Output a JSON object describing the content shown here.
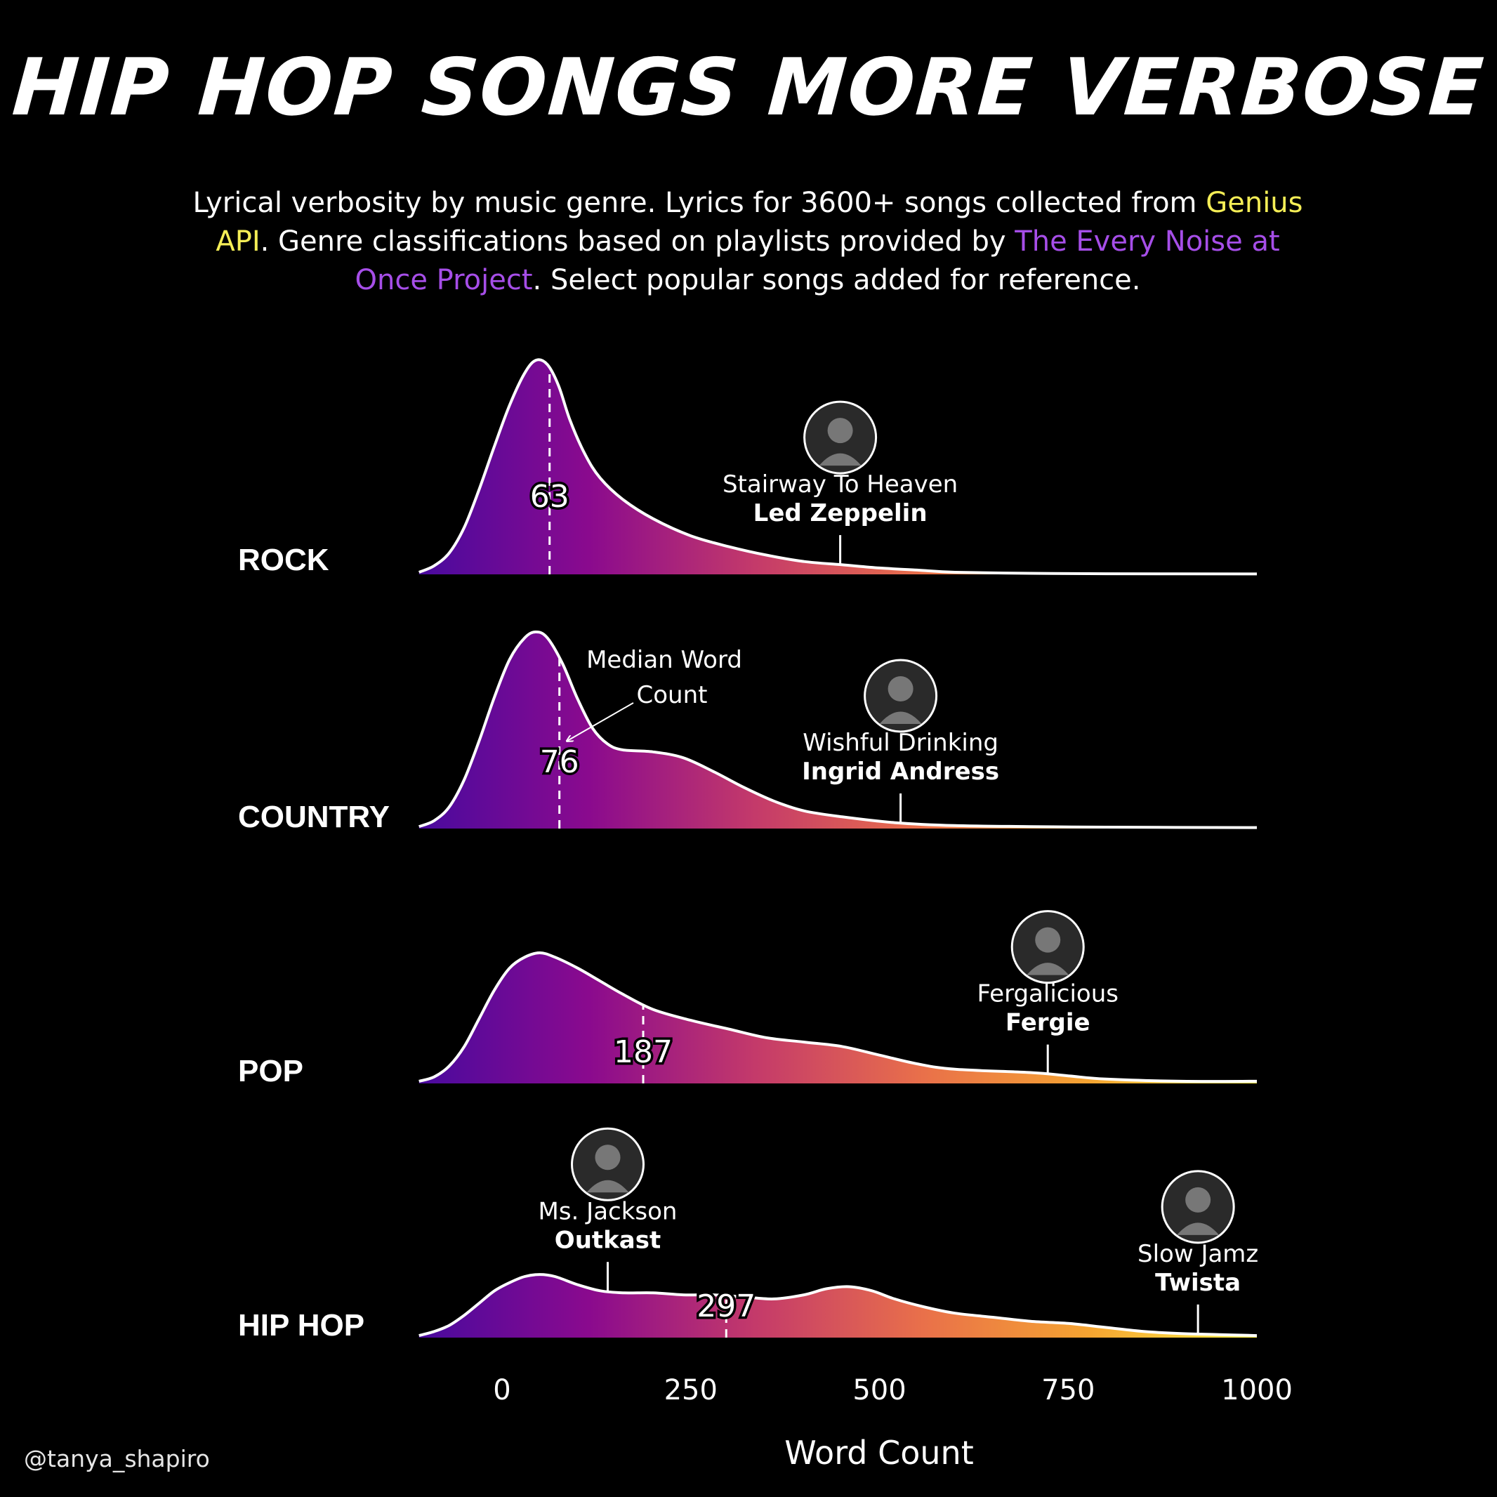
{
  "title": "HIP HOP SONGS MORE VERBOSE",
  "subtitle": {
    "part1": "Lyrical verbosity by music genre. Lyrics for 3600+ songs collected from ",
    "link1": "Genius API",
    "part2": ". Genre classifications based on playlists provided by ",
    "link2": "The Every Noise at Once Project",
    "part3": ". Select popular songs added for reference."
  },
  "credit": "@tanya_shapiro",
  "colors": {
    "background": "#000000",
    "gradient": [
      "#4a0a9e",
      "#8a0a8e",
      "#c43a6a",
      "#e9704a",
      "#f5a431",
      "#fff24a"
    ],
    "genius_link": "#f5ee56",
    "everynoise_link": "#a64ee8"
  },
  "annotation": {
    "median_note": "Median Word Count",
    "median_note_line1": "Median Word",
    "median_note_line2": "Count"
  },
  "chart_data": {
    "type": "area",
    "subtype": "ridgeline-density",
    "xlabel": "Word Count",
    "xlim": [
      -110,
      1000
    ],
    "x_ticks": [
      0,
      250,
      500,
      750,
      1000
    ],
    "x_tick_labels": [
      "0",
      "250",
      "500",
      "750",
      "1000"
    ],
    "series": [
      {
        "name": "ROCK",
        "median": 63,
        "density": [
          [
            -110,
            0.01
          ],
          [
            -90,
            0.04
          ],
          [
            -70,
            0.1
          ],
          [
            -50,
            0.22
          ],
          [
            -30,
            0.4
          ],
          [
            -10,
            0.6
          ],
          [
            10,
            0.79
          ],
          [
            30,
            0.94
          ],
          [
            45,
            1.0
          ],
          [
            60,
            0.98
          ],
          [
            75,
            0.88
          ],
          [
            90,
            0.72
          ],
          [
            110,
            0.56
          ],
          [
            130,
            0.45
          ],
          [
            160,
            0.35
          ],
          [
            200,
            0.26
          ],
          [
            250,
            0.18
          ],
          [
            300,
            0.13
          ],
          [
            350,
            0.09
          ],
          [
            400,
            0.06
          ],
          [
            450,
            0.045
          ],
          [
            500,
            0.03
          ],
          [
            550,
            0.02
          ],
          [
            600,
            0.01
          ],
          [
            700,
            0.005
          ],
          [
            800,
            0.003
          ],
          [
            1000,
            0.002
          ]
        ],
        "highlight": {
          "song": "Stairway To Heaven",
          "artist": "Led Zeppelin",
          "x": 448
        }
      },
      {
        "name": "COUNTRY",
        "median": 76,
        "density": [
          [
            -110,
            0.01
          ],
          [
            -90,
            0.04
          ],
          [
            -70,
            0.11
          ],
          [
            -50,
            0.25
          ],
          [
            -30,
            0.45
          ],
          [
            -10,
            0.67
          ],
          [
            10,
            0.86
          ],
          [
            30,
            0.97
          ],
          [
            45,
            1.0
          ],
          [
            60,
            0.97
          ],
          [
            80,
            0.84
          ],
          [
            100,
            0.66
          ],
          [
            120,
            0.51
          ],
          [
            140,
            0.43
          ],
          [
            160,
            0.4
          ],
          [
            200,
            0.39
          ],
          [
            240,
            0.36
          ],
          [
            280,
            0.29
          ],
          [
            320,
            0.21
          ],
          [
            360,
            0.14
          ],
          [
            400,
            0.09
          ],
          [
            450,
            0.06
          ],
          [
            520,
            0.03
          ],
          [
            600,
            0.015
          ],
          [
            700,
            0.01
          ],
          [
            800,
            0.007
          ],
          [
            1000,
            0.005
          ]
        ],
        "highlight": {
          "song": "Wishful Drinking",
          "artist": "Ingrid Andress",
          "x": 528
        }
      },
      {
        "name": "POP",
        "median": 187,
        "density": [
          [
            -110,
            0.01
          ],
          [
            -90,
            0.03
          ],
          [
            -70,
            0.08
          ],
          [
            -50,
            0.17
          ],
          [
            -30,
            0.3
          ],
          [
            -10,
            0.43
          ],
          [
            10,
            0.53
          ],
          [
            30,
            0.58
          ],
          [
            50,
            0.6
          ],
          [
            70,
            0.58
          ],
          [
            100,
            0.53
          ],
          [
            130,
            0.47
          ],
          [
            160,
            0.41
          ],
          [
            200,
            0.34
          ],
          [
            250,
            0.29
          ],
          [
            300,
            0.25
          ],
          [
            350,
            0.21
          ],
          [
            400,
            0.19
          ],
          [
            450,
            0.17
          ],
          [
            500,
            0.13
          ],
          [
            550,
            0.09
          ],
          [
            600,
            0.065
          ],
          [
            700,
            0.05
          ],
          [
            750,
            0.035
          ],
          [
            800,
            0.02
          ],
          [
            900,
            0.01
          ],
          [
            1000,
            0.01
          ]
        ],
        "highlight": {
          "song": "Fergalicious",
          "artist": "Fergie",
          "x": 723
        }
      },
      {
        "name": "HIP HOP",
        "median": 297,
        "density": [
          [
            -110,
            0.01
          ],
          [
            -90,
            0.03
          ],
          [
            -70,
            0.06
          ],
          [
            -50,
            0.11
          ],
          [
            -30,
            0.17
          ],
          [
            -10,
            0.23
          ],
          [
            10,
            0.27
          ],
          [
            30,
            0.3
          ],
          [
            50,
            0.31
          ],
          [
            70,
            0.3
          ],
          [
            100,
            0.26
          ],
          [
            130,
            0.23
          ],
          [
            160,
            0.22
          ],
          [
            200,
            0.22
          ],
          [
            240,
            0.21
          ],
          [
            280,
            0.21
          ],
          [
            320,
            0.2
          ],
          [
            360,
            0.19
          ],
          [
            400,
            0.21
          ],
          [
            430,
            0.24
          ],
          [
            460,
            0.25
          ],
          [
            490,
            0.23
          ],
          [
            520,
            0.19
          ],
          [
            560,
            0.15
          ],
          [
            600,
            0.12
          ],
          [
            650,
            0.1
          ],
          [
            700,
            0.08
          ],
          [
            750,
            0.07
          ],
          [
            800,
            0.05
          ],
          [
            850,
            0.03
          ],
          [
            900,
            0.02
          ],
          [
            950,
            0.015
          ],
          [
            1000,
            0.01
          ]
        ],
        "highlights": [
          {
            "song": "Ms. Jackson",
            "artist": "Outkast",
            "x": 140
          },
          {
            "song": "Slow Jamz",
            "artist": "Twista",
            "x": 922
          }
        ]
      }
    ]
  }
}
